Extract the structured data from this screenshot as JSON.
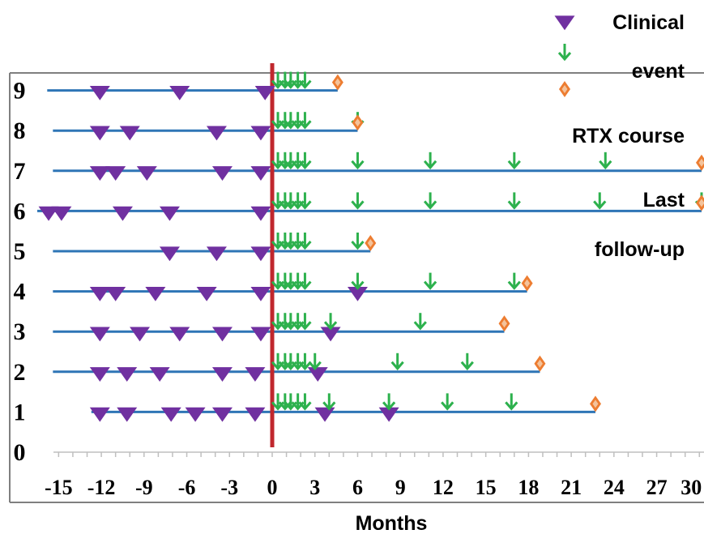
{
  "chart_data": {
    "type": "scatter",
    "title": "",
    "xlabel": "Months",
    "ylabel": "",
    "xlim": [
      -17,
      31
    ],
    "ylim": [
      0,
      9
    ],
    "x_ticks": [
      -15,
      -12,
      -9,
      -6,
      -3,
      0,
      3,
      6,
      9,
      12,
      15,
      18,
      21,
      24,
      27,
      30
    ],
    "y_ticks": [
      0,
      1,
      2,
      3,
      4,
      5,
      6,
      7,
      8,
      9
    ],
    "grid": false,
    "reference_line_x": 0,
    "legend_position": "top-right",
    "legend_text": [
      "Clinical",
      "event",
      "RTX course",
      "Last",
      "follow-up"
    ],
    "colors": {
      "timeline": "#2e75b6",
      "reference_line": "#c0272d",
      "clinical_event": "#7030a0",
      "rtx_course": "#2db14d",
      "last_follow_up": "#ed7d31"
    },
    "patients": [
      {
        "y": 1,
        "start": -12.7,
        "end": 22.7,
        "clinical_events": [
          -12.1,
          -10.2,
          -7.1,
          -5.4,
          -3.5,
          -1.2,
          3.7,
          8.2
        ],
        "rtx_courses": [
          0.4,
          0.9,
          1.3,
          1.8,
          2.3,
          4.0,
          8.2,
          12.3,
          16.8
        ],
        "last_follow_up": 22.7
      },
      {
        "y": 2,
        "start": -15.4,
        "end": 18.8,
        "clinical_events": [
          -12.1,
          -10.2,
          -7.9,
          -3.5,
          -1.2,
          3.2
        ],
        "rtx_courses": [
          0.4,
          0.9,
          1.3,
          1.8,
          2.3,
          3.0,
          8.8,
          13.7
        ],
        "last_follow_up": 18.8
      },
      {
        "y": 3,
        "start": -15.4,
        "end": 16.3,
        "clinical_events": [
          -12.1,
          -9.3,
          -6.5,
          -3.5,
          -0.8,
          4.1
        ],
        "rtx_courses": [
          0.4,
          0.9,
          1.3,
          1.8,
          2.3,
          4.1,
          10.4
        ],
        "last_follow_up": 16.3
      },
      {
        "y": 4,
        "start": -15.4,
        "end": 17.9,
        "clinical_events": [
          -12.1,
          -11.0,
          -8.2,
          -4.6,
          -0.8,
          6.0
        ],
        "rtx_courses": [
          0.4,
          0.9,
          1.3,
          1.8,
          2.3,
          6.0,
          11.1,
          17.0
        ],
        "last_follow_up": 17.9
      },
      {
        "y": 5,
        "start": -15.4,
        "end": 6.9,
        "clinical_events": [
          -7.2,
          -3.9,
          -0.8
        ],
        "rtx_courses": [
          0.4,
          0.9,
          1.3,
          1.8,
          2.3,
          6.0
        ],
        "last_follow_up": 6.9
      },
      {
        "y": 6,
        "start": -16.5,
        "end": 31,
        "clinical_events": [
          -15.7,
          -14.8,
          -10.5,
          -7.2,
          -0.8
        ],
        "rtx_courses": [
          0.4,
          0.9,
          1.3,
          1.8,
          2.3,
          6.0,
          11.1,
          17.0,
          23.0,
          30.8
        ],
        "last_follow_up": 30.9
      },
      {
        "y": 7,
        "start": -15.4,
        "end": 30.8,
        "clinical_events": [
          -12.1,
          -11.0,
          -8.8,
          -3.5,
          -0.8
        ],
        "rtx_courses": [
          0.4,
          0.9,
          1.3,
          1.8,
          2.3,
          6.0,
          11.1,
          17.0,
          23.4
        ],
        "last_follow_up": 30.8
      },
      {
        "y": 8,
        "start": -15.4,
        "end": 6.0,
        "clinical_events": [
          -12.1,
          -10.0,
          -3.9,
          -0.8
        ],
        "rtx_courses": [
          0.4,
          0.9,
          1.3,
          1.8,
          2.3,
          6.0
        ],
        "last_follow_up": 6.0
      },
      {
        "y": 9,
        "start": -15.8,
        "end": 4.6,
        "clinical_events": [
          -12.1,
          -6.5,
          -0.5
        ],
        "rtx_courses": [
          0.4,
          0.9,
          1.3,
          1.8,
          2.3
        ],
        "last_follow_up": 4.6
      }
    ]
  }
}
